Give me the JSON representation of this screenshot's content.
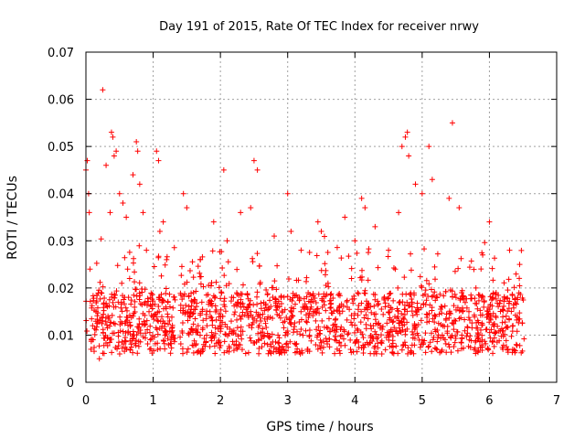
{
  "chart_data": {
    "type": "scatter",
    "title": "Day 191 of 2015, Rate Of TEC Index for receiver nrwy",
    "xlabel": "GPS time / hours",
    "ylabel": "ROTI / TECUs",
    "xlim": [
      0,
      7
    ],
    "ylim": [
      0,
      0.07
    ],
    "x_ticks": [
      "0",
      "1",
      "2",
      "3",
      "4",
      "5",
      "6",
      "7"
    ],
    "y_ticks": [
      "0",
      "0.01",
      "0.02",
      "0.03",
      "0.04",
      "0.05",
      "0.06",
      "0.07"
    ],
    "grid": true,
    "marker": "+",
    "series": [
      {
        "name": "ROTI",
        "color": "#ff0000",
        "x": [
          0.0,
          0.02,
          0.04,
          0.05,
          0.06,
          0.08,
          0.1,
          0.25,
          0.3,
          0.36,
          0.38,
          0.4,
          0.42,
          0.45,
          0.5,
          0.55,
          0.6,
          0.62,
          0.7,
          0.75,
          0.77,
          0.8,
          0.85,
          0.9,
          1.05,
          1.08,
          1.1,
          1.15,
          1.2,
          1.45,
          1.5,
          1.7,
          1.9,
          2.05,
          2.1,
          2.3,
          2.45,
          2.5,
          2.55,
          2.8,
          3.0,
          3.05,
          3.2,
          3.45,
          3.5,
          3.85,
          4.0,
          4.1,
          4.15,
          4.3,
          4.5,
          4.65,
          4.7,
          4.75,
          4.78,
          4.8,
          4.9,
          5.0,
          5.1,
          5.15,
          5.4,
          5.45,
          5.55,
          5.9,
          6.0,
          6.3,
          6.45,
          0.2,
          0.95,
          1.3,
          1.8,
          2.2,
          2.7,
          3.3,
          3.7,
          4.2,
          4.4,
          5.3,
          5.7,
          6.2,
          6.4,
          0.65,
          1.25,
          2.9,
          3.6,
          4.6,
          5.8,
          6.1,
          0.15,
          1.55,
          2.6,
          3.4,
          4.45,
          5.2,
          6.35,
          0.48,
          1.6,
          2.35,
          3.15,
          3.95,
          4.85,
          5.6,
          6.25
        ],
        "y": [
          0.045,
          0.047,
          0.04,
          0.036,
          0.024,
          0.009,
          0.012,
          0.062,
          0.046,
          0.036,
          0.053,
          0.052,
          0.048,
          0.049,
          0.04,
          0.038,
          0.035,
          0.024,
          0.044,
          0.051,
          0.049,
          0.042,
          0.036,
          0.028,
          0.049,
          0.047,
          0.032,
          0.034,
          0.026,
          0.04,
          0.037,
          0.026,
          0.034,
          0.045,
          0.03,
          0.036,
          0.037,
          0.047,
          0.045,
          0.031,
          0.04,
          0.032,
          0.028,
          0.034,
          0.032,
          0.035,
          0.03,
          0.039,
          0.037,
          0.033,
          0.028,
          0.036,
          0.05,
          0.052,
          0.053,
          0.048,
          0.042,
          0.04,
          0.05,
          0.043,
          0.039,
          0.055,
          0.037,
          0.027,
          0.034,
          0.028,
          0.025,
          0.005,
          0.007,
          0.01,
          0.012,
          0.011,
          0.008,
          0.007,
          0.009,
          0.008,
          0.006,
          0.01,
          0.009,
          0.007,
          0.008,
          0.022,
          0.016,
          0.018,
          0.021,
          0.024,
          0.02,
          0.019,
          0.015,
          0.014,
          0.013,
          0.015,
          0.016,
          0.014,
          0.012,
          0.017,
          0.019,
          0.016,
          0.018,
          0.022,
          0.017,
          0.015,
          0.014
        ]
      }
    ]
  }
}
